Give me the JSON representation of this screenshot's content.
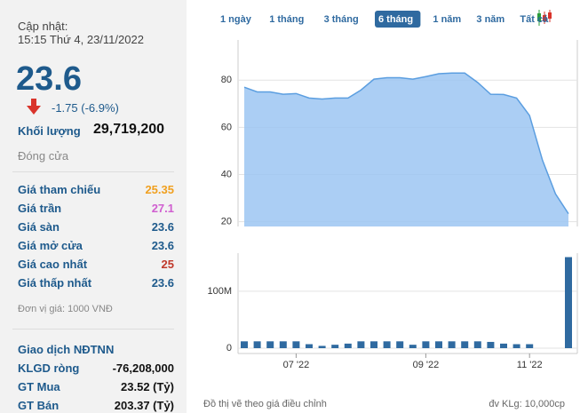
{
  "panel": {
    "update_label": "Cập nhật:",
    "update_time": "15:15 Thứ 4, 23/11/2022",
    "price": "23.6",
    "change": "-1.75 (-6.9%)",
    "volume_label": "Khối lượng",
    "volume": "29,719,200",
    "close_label": "Đóng cửa",
    "rows": [
      {
        "label": "Giá tham chiếu",
        "value": "25.35",
        "color": "#f0a020"
      },
      {
        "label": "Giá trần",
        "value": "27.1",
        "color": "#d05fd0"
      },
      {
        "label": "Giá sàn",
        "value": "23.6",
        "color": "#1e5a8c"
      },
      {
        "label": "Giá mở cửa",
        "value": "23.6",
        "color": "#1e5a8c"
      },
      {
        "label": "Giá cao nhất",
        "value": "25",
        "color": "#c0392b"
      },
      {
        "label": "Giá thấp nhất",
        "value": "23.6",
        "color": "#1e5a8c"
      }
    ],
    "unit_note": "Đơn vị giá: 1000 VNĐ",
    "foreign_title": "Giao dịch NĐTNN",
    "foreign_rows": [
      {
        "label": "KLGD ròng",
        "value": "-76,208,000"
      },
      {
        "label": "GT Mua",
        "value": "23.52 (Tỷ)"
      },
      {
        "label": "GT Bán",
        "value": "203.37 (Tỷ)"
      }
    ]
  },
  "ranges": {
    "items": [
      "1 ngày",
      "1 tháng",
      "3 tháng",
      "6 tháng",
      "1 năm",
      "3 năm",
      "Tất cả"
    ],
    "active": 3
  },
  "footer": {
    "note": "Đồ thị vẽ theo giá điều chỉnh",
    "unit": "đv KLg: 10,000cp"
  },
  "chart_data": [
    {
      "type": "area",
      "color": "#5b9ee0",
      "values": [
        77,
        75,
        75,
        74,
        74.3,
        72.4,
        72,
        72.4,
        72.4,
        75.8,
        80.4,
        81,
        81,
        80.4,
        81.5,
        82.7,
        83,
        83,
        79,
        74,
        73.9,
        72.4,
        65,
        46,
        31.8,
        23.4
      ],
      "ylim": [
        18,
        97
      ],
      "yticks": [
        20,
        40,
        60,
        80
      ],
      "grid": true
    },
    {
      "type": "bar",
      "color": "#2f6aa0",
      "categories": [
        null,
        null,
        null,
        null,
        "07 '22",
        null,
        null,
        null,
        null,
        null,
        null,
        null,
        null,
        null,
        "09 '22",
        null,
        null,
        null,
        null,
        null,
        null,
        null,
        "11 '22",
        null,
        null,
        null
      ],
      "values": [
        12000000,
        12000000,
        12000000,
        12000000,
        12000000,
        7000000,
        4000000,
        6000000,
        8000000,
        12000000,
        12000000,
        12000000,
        12000000,
        6000000,
        12000000,
        12000000,
        12000000,
        12000000,
        12000000,
        11000000,
        8000000,
        7000000,
        7000000,
        null,
        null,
        160000000
      ],
      "ylim": [
        0,
        167000000
      ],
      "yticks": [
        0,
        {
          "value": 100000000,
          "label": "100M"
        }
      ],
      "grid": true
    }
  ]
}
